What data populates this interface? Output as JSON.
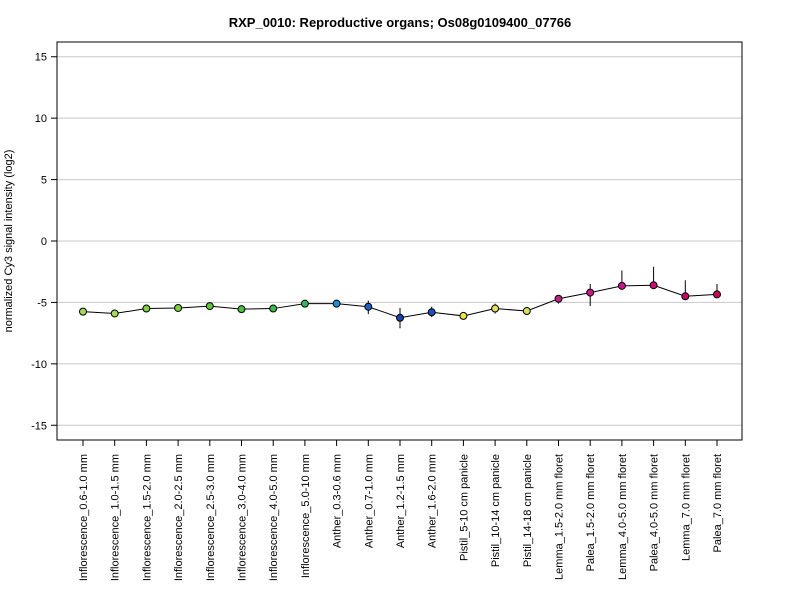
{
  "chart_data": {
    "type": "line",
    "title": "RXP_0010: Reproductive organs; Os08g0109400_07766",
    "xlabel": "",
    "ylabel": "normalized Cy3 signal intensity (log2)",
    "ylim": [
      -16.2,
      16.2
    ],
    "yticks": [
      -15,
      -10,
      -5,
      0,
      5,
      10,
      15
    ],
    "ytick_labels": [
      "-15",
      "-10",
      "-5",
      "0",
      "5",
      "10",
      "15"
    ],
    "grid": "horizontal",
    "categories": [
      "Inflorescence_0.6-1.0 mm",
      "Inflorescence_1.0-1.5 mm",
      "Inflorescence_1.5-2.0 mm",
      "Inflorescence_2.0-2.5 mm",
      "Inflorescence_2.5-3.0 mm",
      "Inflorescence_3.0-4.0 mm",
      "Inflorescence_4.0-5.0 mm",
      "Inflorescence_5.0-10 mm",
      "Anther_0.3-0.6 mm",
      "Anther_0.7-1.0 mm",
      "Anther_1.2-1.5 mm",
      "Anther_1.6-2.0 mm",
      "Pistil_5-10 cm panicle",
      "Pistil_10-14 cm panicle",
      "Pistil_14-18 cm panicle",
      "Lemma_1.5-2.0 mm floret",
      "Palea_1.5-2.0 mm floret",
      "Lemma_4.0-5.0 mm floret",
      "Palea_4.0-5.0 mm floret",
      "Lemma_7.0 mm floret",
      "Palea_7.0 mm floret"
    ],
    "series": [
      {
        "values": [
          -5.75,
          -5.9,
          -5.5,
          -5.45,
          -5.3,
          -5.55,
          -5.5,
          -5.1,
          -5.1,
          -5.35,
          -6.25,
          -5.8,
          -6.1,
          -5.5,
          -5.7,
          -4.7,
          -4.2,
          -3.65,
          -3.6,
          -4.5,
          -4.35
        ],
        "error_low": [
          -5.9,
          -6.0,
          -5.6,
          -5.55,
          -5.4,
          -5.65,
          -5.6,
          -5.2,
          -5.2,
          -5.95,
          -7.1,
          -6.2,
          -6.3,
          -5.9,
          -5.9,
          -5.1,
          -5.3,
          -3.8,
          -3.7,
          -4.6,
          -4.5
        ],
        "error_high": [
          -5.6,
          -5.8,
          -5.4,
          -5.35,
          -5.2,
          -5.45,
          -5.4,
          -5.0,
          -5.0,
          -4.85,
          -5.45,
          -5.35,
          -5.9,
          -5.1,
          -5.5,
          -4.4,
          -3.5,
          -2.4,
          -2.1,
          -3.2,
          -3.5
        ],
        "point_colors": [
          "#a6d85a",
          "#a6d85a",
          "#7fd13f",
          "#7fd13f",
          "#5cc83a",
          "#48c040",
          "#38bc45",
          "#2fb85c",
          "#1e8fd6",
          "#1b5fc8",
          "#1a3fb0",
          "#1a50c0",
          "#f0e040",
          "#e8e05a",
          "#d8e060",
          "#c02080",
          "#c8188a",
          "#c81490",
          "#c81078",
          "#c00c68",
          "#c80858"
        ]
      }
    ],
    "line_color": "#000000"
  }
}
